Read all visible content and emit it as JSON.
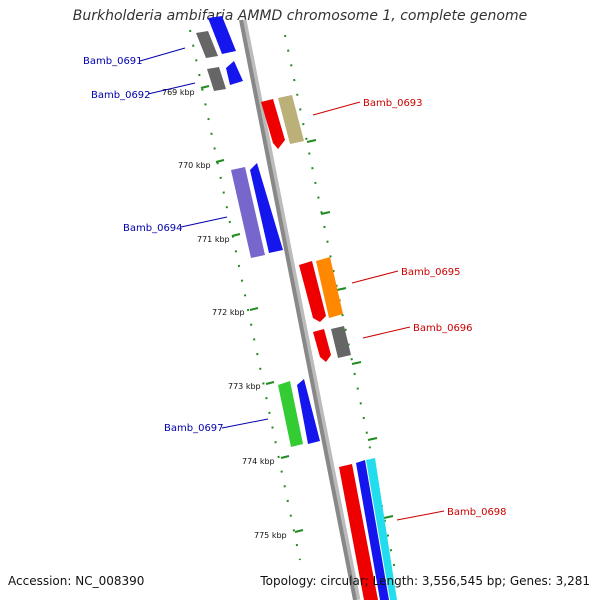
{
  "title": "Burkholderia ambifaria AMMD chromosome 1, complete genome",
  "accession": "Accession: NC_008390",
  "summary": "Topology: circular; Length: 3,556,545 bp; Genes: 3,281",
  "colors": {
    "backbone": "#888888",
    "tick": "#228b22",
    "forward_label": "#0000aa",
    "reverse_label": "#cc0000"
  },
  "ticks": [
    {
      "label": "769 kbp"
    },
    {
      "label": "770 kbp"
    },
    {
      "label": "771 kbp"
    },
    {
      "label": "772 kbp"
    },
    {
      "label": "773 kbp"
    },
    {
      "label": "774 kbp"
    },
    {
      "label": "775 kbp"
    }
  ],
  "genes": [
    {
      "name": "Bamb_0691",
      "strand": "forward"
    },
    {
      "name": "Bamb_0692",
      "strand": "forward"
    },
    {
      "name": "Bamb_0693",
      "strand": "reverse"
    },
    {
      "name": "Bamb_0694",
      "strand": "forward"
    },
    {
      "name": "Bamb_0695",
      "strand": "reverse"
    },
    {
      "name": "Bamb_0696",
      "strand": "reverse"
    },
    {
      "name": "Bamb_0697",
      "strand": "forward"
    },
    {
      "name": "Bamb_0698",
      "strand": "reverse"
    }
  ]
}
